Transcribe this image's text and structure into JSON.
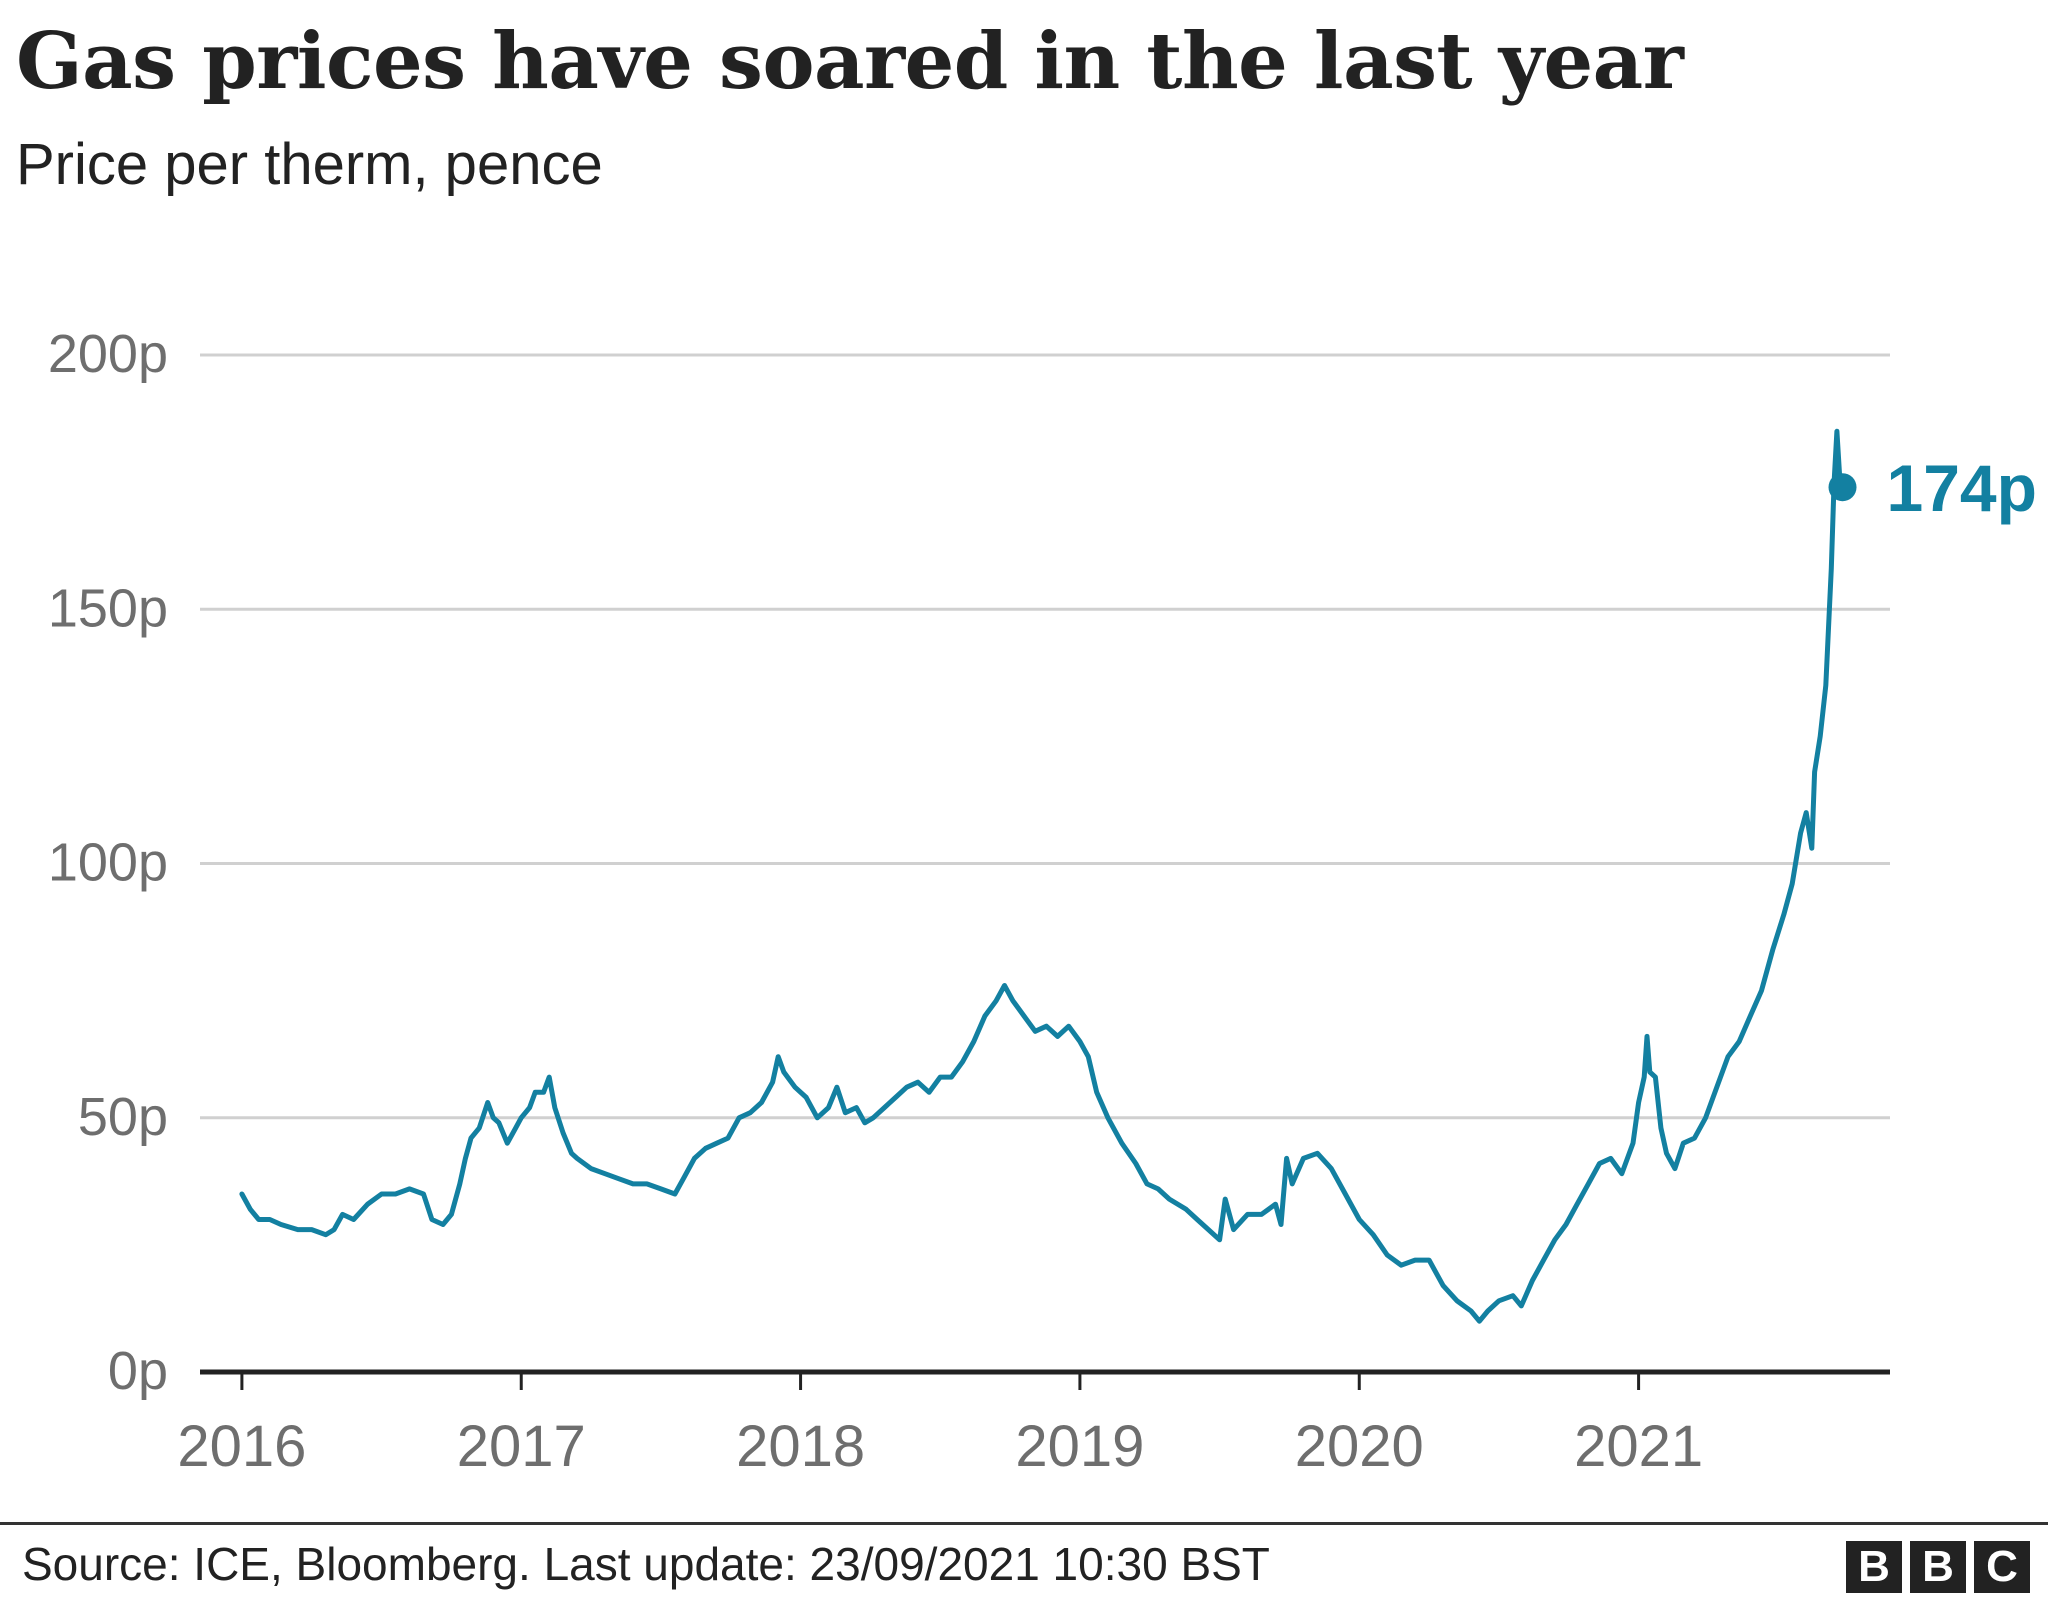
{
  "header": {
    "title": "Gas prices have soared in the last year",
    "subtitle": "Price per therm, pence"
  },
  "footer": {
    "source": "Source: ICE, Bloomberg. Last update: 23/09/2021 10:30 BST",
    "logo_letters": [
      "B",
      "B",
      "C"
    ]
  },
  "colors": {
    "line": "#1380A1",
    "grid": "#d0d0d0",
    "axis": "#222222",
    "tick_text": "#6e6e6e",
    "text": "#222222"
  },
  "chart_data": {
    "type": "line",
    "title": "Gas prices have soared in the last year",
    "subtitle": "Price per therm, pence",
    "xlabel": "",
    "ylabel": "",
    "ylim": [
      0,
      200
    ],
    "xlim": [
      2015.85,
      2021.9
    ],
    "y_ticks": [
      {
        "value": 0,
        "label": "0p"
      },
      {
        "value": 50,
        "label": "50p"
      },
      {
        "value": 100,
        "label": "100p"
      },
      {
        "value": 150,
        "label": "150p"
      },
      {
        "value": 200,
        "label": "200p"
      }
    ],
    "x_ticks": [
      {
        "value": 2016,
        "label": "2016"
      },
      {
        "value": 2017,
        "label": "2017"
      },
      {
        "value": 2018,
        "label": "2018"
      },
      {
        "value": 2019,
        "label": "2019"
      },
      {
        "value": 2020,
        "label": "2020"
      },
      {
        "value": 2021,
        "label": "2021"
      }
    ],
    "grid": true,
    "legend": "none",
    "series": [
      {
        "points": [
          [
            2016.0,
            35
          ],
          [
            2016.03,
            32
          ],
          [
            2016.06,
            30
          ],
          [
            2016.1,
            30
          ],
          [
            2016.14,
            29
          ],
          [
            2016.2,
            28
          ],
          [
            2016.25,
            28
          ],
          [
            2016.3,
            27
          ],
          [
            2016.33,
            28
          ],
          [
            2016.36,
            31
          ],
          [
            2016.4,
            30
          ],
          [
            2016.45,
            33
          ],
          [
            2016.5,
            35
          ],
          [
            2016.55,
            35
          ],
          [
            2016.6,
            36
          ],
          [
            2016.65,
            35
          ],
          [
            2016.68,
            30
          ],
          [
            2016.72,
            29
          ],
          [
            2016.75,
            31
          ],
          [
            2016.78,
            37
          ],
          [
            2016.8,
            42
          ],
          [
            2016.82,
            46
          ],
          [
            2016.85,
            48
          ],
          [
            2016.88,
            53
          ],
          [
            2016.9,
            50
          ],
          [
            2016.92,
            49
          ],
          [
            2016.95,
            45
          ],
          [
            2016.98,
            48
          ],
          [
            2017.0,
            50
          ],
          [
            2017.03,
            52
          ],
          [
            2017.05,
            55
          ],
          [
            2017.08,
            55
          ],
          [
            2017.1,
            58
          ],
          [
            2017.12,
            52
          ],
          [
            2017.15,
            47
          ],
          [
            2017.18,
            43
          ],
          [
            2017.2,
            42
          ],
          [
            2017.25,
            40
          ],
          [
            2017.3,
            39
          ],
          [
            2017.35,
            38
          ],
          [
            2017.4,
            37
          ],
          [
            2017.45,
            37
          ],
          [
            2017.5,
            36
          ],
          [
            2017.55,
            35
          ],
          [
            2017.58,
            38
          ],
          [
            2017.62,
            42
          ],
          [
            2017.66,
            44
          ],
          [
            2017.7,
            45
          ],
          [
            2017.74,
            46
          ],
          [
            2017.78,
            50
          ],
          [
            2017.82,
            51
          ],
          [
            2017.86,
            53
          ],
          [
            2017.9,
            57
          ],
          [
            2017.92,
            62
          ],
          [
            2017.94,
            59
          ],
          [
            2017.98,
            56
          ],
          [
            2018.02,
            54
          ],
          [
            2018.06,
            50
          ],
          [
            2018.1,
            52
          ],
          [
            2018.13,
            56
          ],
          [
            2018.16,
            51
          ],
          [
            2018.2,
            52
          ],
          [
            2018.23,
            49
          ],
          [
            2018.26,
            50
          ],
          [
            2018.3,
            52
          ],
          [
            2018.34,
            54
          ],
          [
            2018.38,
            56
          ],
          [
            2018.42,
            57
          ],
          [
            2018.46,
            55
          ],
          [
            2018.5,
            58
          ],
          [
            2018.54,
            58
          ],
          [
            2018.58,
            61
          ],
          [
            2018.62,
            65
          ],
          [
            2018.66,
            70
          ],
          [
            2018.7,
            73
          ],
          [
            2018.73,
            76
          ],
          [
            2018.76,
            73
          ],
          [
            2018.8,
            70
          ],
          [
            2018.84,
            67
          ],
          [
            2018.88,
            68
          ],
          [
            2018.92,
            66
          ],
          [
            2018.96,
            68
          ],
          [
            2019.0,
            65
          ],
          [
            2019.03,
            62
          ],
          [
            2019.06,
            55
          ],
          [
            2019.1,
            50
          ],
          [
            2019.15,
            45
          ],
          [
            2019.2,
            41
          ],
          [
            2019.24,
            37
          ],
          [
            2019.28,
            36
          ],
          [
            2019.32,
            34
          ],
          [
            2019.38,
            32
          ],
          [
            2019.42,
            30
          ],
          [
            2019.46,
            28
          ],
          [
            2019.5,
            26
          ],
          [
            2019.52,
            34
          ],
          [
            2019.55,
            28
          ],
          [
            2019.6,
            31
          ],
          [
            2019.65,
            31
          ],
          [
            2019.7,
            33
          ],
          [
            2019.72,
            29
          ],
          [
            2019.74,
            42
          ],
          [
            2019.76,
            37
          ],
          [
            2019.8,
            42
          ],
          [
            2019.85,
            43
          ],
          [
            2019.9,
            40
          ],
          [
            2019.95,
            35
          ],
          [
            2020.0,
            30
          ],
          [
            2020.05,
            27
          ],
          [
            2020.1,
            23
          ],
          [
            2020.15,
            21
          ],
          [
            2020.2,
            22
          ],
          [
            2020.25,
            22
          ],
          [
            2020.3,
            17
          ],
          [
            2020.35,
            14
          ],
          [
            2020.4,
            12
          ],
          [
            2020.43,
            10
          ],
          [
            2020.46,
            12
          ],
          [
            2020.5,
            14
          ],
          [
            2020.55,
            15
          ],
          [
            2020.58,
            13
          ],
          [
            2020.62,
            18
          ],
          [
            2020.66,
            22
          ],
          [
            2020.7,
            26
          ],
          [
            2020.74,
            29
          ],
          [
            2020.78,
            33
          ],
          [
            2020.82,
            37
          ],
          [
            2020.86,
            41
          ],
          [
            2020.9,
            42
          ],
          [
            2020.94,
            39
          ],
          [
            2020.98,
            45
          ],
          [
            2021.0,
            53
          ],
          [
            2021.02,
            58
          ],
          [
            2021.03,
            66
          ],
          [
            2021.04,
            59
          ],
          [
            2021.06,
            58
          ],
          [
            2021.08,
            48
          ],
          [
            2021.1,
            43
          ],
          [
            2021.13,
            40
          ],
          [
            2021.16,
            45
          ],
          [
            2021.2,
            46
          ],
          [
            2021.24,
            50
          ],
          [
            2021.28,
            56
          ],
          [
            2021.32,
            62
          ],
          [
            2021.36,
            65
          ],
          [
            2021.4,
            70
          ],
          [
            2021.44,
            75
          ],
          [
            2021.48,
            83
          ],
          [
            2021.52,
            90
          ],
          [
            2021.55,
            96
          ],
          [
            2021.58,
            106
          ],
          [
            2021.6,
            110
          ],
          [
            2021.62,
            103
          ],
          [
            2021.63,
            118
          ],
          [
            2021.65,
            125
          ],
          [
            2021.67,
            135
          ],
          [
            2021.69,
            158
          ],
          [
            2021.7,
            175
          ],
          [
            2021.71,
            185
          ],
          [
            2021.72,
            176
          ],
          [
            2021.73,
            174
          ]
        ]
      }
    ],
    "annotations": [
      {
        "x": 2021.73,
        "y": 174,
        "label": "174p"
      }
    ]
  }
}
